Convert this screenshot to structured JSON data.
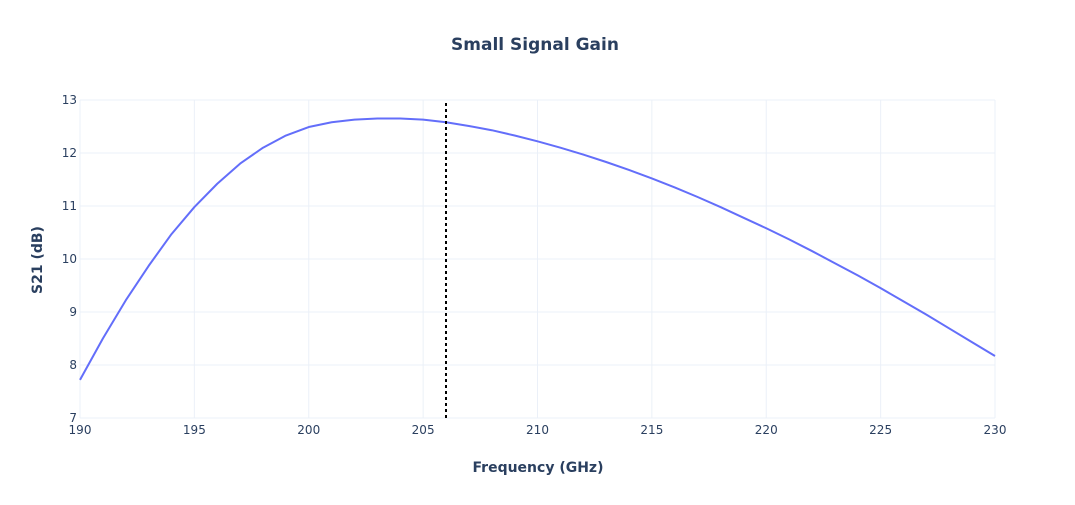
{
  "chart_data": {
    "type": "line",
    "title": "Small Signal Gain",
    "xlabel": "Frequency (GHz)",
    "ylabel": "S21 (dB)",
    "xlim": [
      190,
      230
    ],
    "ylim": [
      7,
      13
    ],
    "xticks": [
      190,
      195,
      200,
      205,
      210,
      215,
      220,
      225,
      230
    ],
    "yticks": [
      7,
      8,
      9,
      10,
      11,
      12,
      13
    ],
    "grid": true,
    "series": [
      {
        "color": "#636efa",
        "x": [
          190,
          191,
          192,
          193,
          194,
          195,
          196,
          197,
          198,
          199,
          200,
          201,
          202,
          203,
          204,
          205,
          206,
          207,
          208,
          209,
          210,
          211,
          212,
          213,
          214,
          215,
          216,
          217,
          218,
          219,
          220,
          221,
          222,
          223,
          224,
          225,
          226,
          227,
          228,
          229,
          230
        ],
        "y": [
          7.72,
          8.5,
          9.22,
          9.87,
          10.47,
          10.98,
          11.42,
          11.8,
          12.1,
          12.33,
          12.49,
          12.58,
          12.63,
          12.65,
          12.65,
          12.63,
          12.58,
          12.51,
          12.43,
          12.33,
          12.22,
          12.1,
          11.97,
          11.83,
          11.68,
          11.52,
          11.35,
          11.17,
          10.98,
          10.78,
          10.58,
          10.37,
          10.15,
          9.92,
          9.69,
          9.45,
          9.2,
          8.95,
          8.69,
          8.43,
          8.17
        ]
      }
    ],
    "marker_line": {
      "x": 206,
      "color": "#000000",
      "style": "dotted"
    }
  }
}
